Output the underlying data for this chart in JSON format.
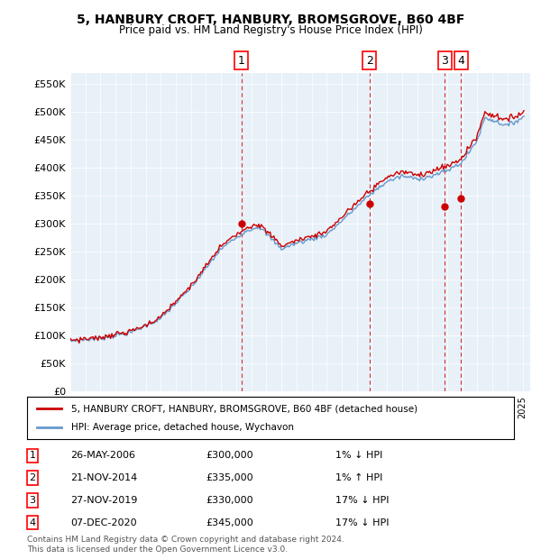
{
  "title": "5, HANBURY CROFT, HANBURY, BROMSGROVE, B60 4BF",
  "subtitle": "Price paid vs. HM Land Registry's House Price Index (HPI)",
  "ylabel_ticks": [
    "£0",
    "£50K",
    "£100K",
    "£150K",
    "£200K",
    "£250K",
    "£300K",
    "£350K",
    "£400K",
    "£450K",
    "£500K",
    "£550K"
  ],
  "ylim": [
    0,
    570000
  ],
  "yticks": [
    0,
    50000,
    100000,
    150000,
    200000,
    250000,
    300000,
    350000,
    400000,
    450000,
    500000,
    550000
  ],
  "sale_dates": [
    "2006-05-26",
    "2014-11-21",
    "2019-11-27",
    "2020-12-07"
  ],
  "sale_prices": [
    300000,
    335000,
    330000,
    345000
  ],
  "sale_labels": [
    "1",
    "2",
    "3",
    "4"
  ],
  "vline_color": "#cc0000",
  "sale_marker_color": "#cc0000",
  "hpi_line_color": "#6699cc",
  "price_line_color": "#cc0000",
  "legend_box_color": "#cc0000",
  "legend_hpi_color": "#6699cc",
  "background_chart": "#e8f0f8",
  "footer_text": "Contains HM Land Registry data © Crown copyright and database right 2024.\nThis data is licensed under the Open Government Licence v3.0.",
  "legend_label_price": "5, HANBURY CROFT, HANBURY, BROMSGROVE, B60 4BF (detached house)",
  "legend_label_hpi": "HPI: Average price, detached house, Wychavon",
  "table_rows": [
    [
      "1",
      "26-MAY-2006",
      "£300,000",
      "1% ↓ HPI"
    ],
    [
      "2",
      "21-NOV-2014",
      "£335,000",
      "1% ↑ HPI"
    ],
    [
      "3",
      "27-NOV-2019",
      "£330,000",
      "17% ↓ HPI"
    ],
    [
      "4",
      "07-DEC-2020",
      "£345,000",
      "17% ↓ HPI"
    ]
  ]
}
